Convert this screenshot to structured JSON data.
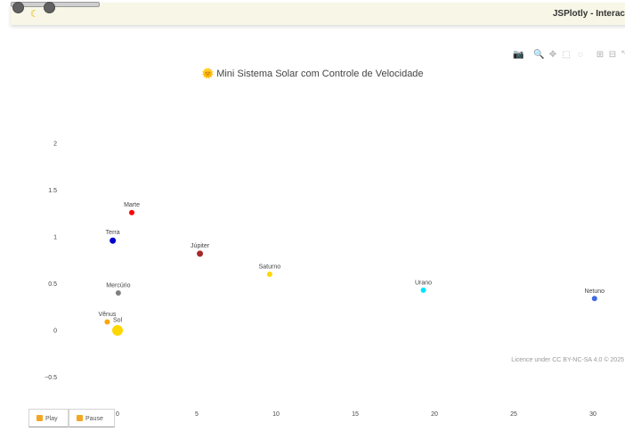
{
  "header": {
    "app_title": "JSPlotly - Interac",
    "theme_icon": "moon-icon"
  },
  "chart_data": {
    "type": "scatter",
    "title_icon": "🌞",
    "title": "Mini Sistema Solar com Controle de Velocidade",
    "xlim": [
      -0.5,
      31
    ],
    "ylim": [
      -0.75,
      2.1
    ],
    "x_ticks": [
      0,
      5,
      10,
      15,
      20,
      25,
      30
    ],
    "y_ticks": [
      -0.5,
      0,
      0.5,
      1,
      1.5,
      2
    ],
    "grid": false,
    "points": [
      {
        "name": "Sol",
        "x": 0,
        "y": 0,
        "color": "#FFD700",
        "size": 11
      },
      {
        "name": "Vênus",
        "x": -0.65,
        "y": 0.09,
        "color": "#FFA500",
        "size": 5
      },
      {
        "name": "Mercúrio",
        "x": 0.05,
        "y": 0.4,
        "color": "#808080",
        "size": 5
      },
      {
        "name": "Terra",
        "x": -0.3,
        "y": 0.96,
        "color": "#0000CD",
        "size": 6
      },
      {
        "name": "Marte",
        "x": 0.9,
        "y": 1.26,
        "color": "#FF0000",
        "size": 5
      },
      {
        "name": "Júpiter",
        "x": 5.2,
        "y": 0.82,
        "color": "#A52A2A",
        "size": 6
      },
      {
        "name": "Saturno",
        "x": 9.6,
        "y": 0.6,
        "color": "#FFD700",
        "size": 5
      },
      {
        "name": "Urano",
        "x": 19.3,
        "y": 0.43,
        "color": "#00E5FF",
        "size": 5
      },
      {
        "name": "Netuno",
        "x": 30.1,
        "y": 0.34,
        "color": "#4169E1",
        "size": 5
      }
    ]
  },
  "modebar": [
    {
      "name": "camera-icon",
      "glyph": "📷",
      "active": false
    },
    {
      "name": "zoom-icon",
      "glyph": "🔍",
      "active": true
    },
    {
      "name": "pan-icon",
      "glyph": "✥",
      "active": false
    },
    {
      "name": "box-select-icon",
      "glyph": "⬚",
      "active": false
    },
    {
      "name": "lasso-icon",
      "glyph": "◌",
      "active": false
    },
    {
      "name": "zoom-in-icon",
      "glyph": "⊞",
      "active": false
    },
    {
      "name": "zoom-out-icon",
      "glyph": "⊟",
      "active": false
    },
    {
      "name": "autoscale-icon",
      "glyph": "⤡",
      "active": false
    }
  ],
  "license": "Licence under CC BY-NC-SA 4.0 © 2025",
  "controls": {
    "play_label": "Play",
    "pause_label": "Pause"
  }
}
